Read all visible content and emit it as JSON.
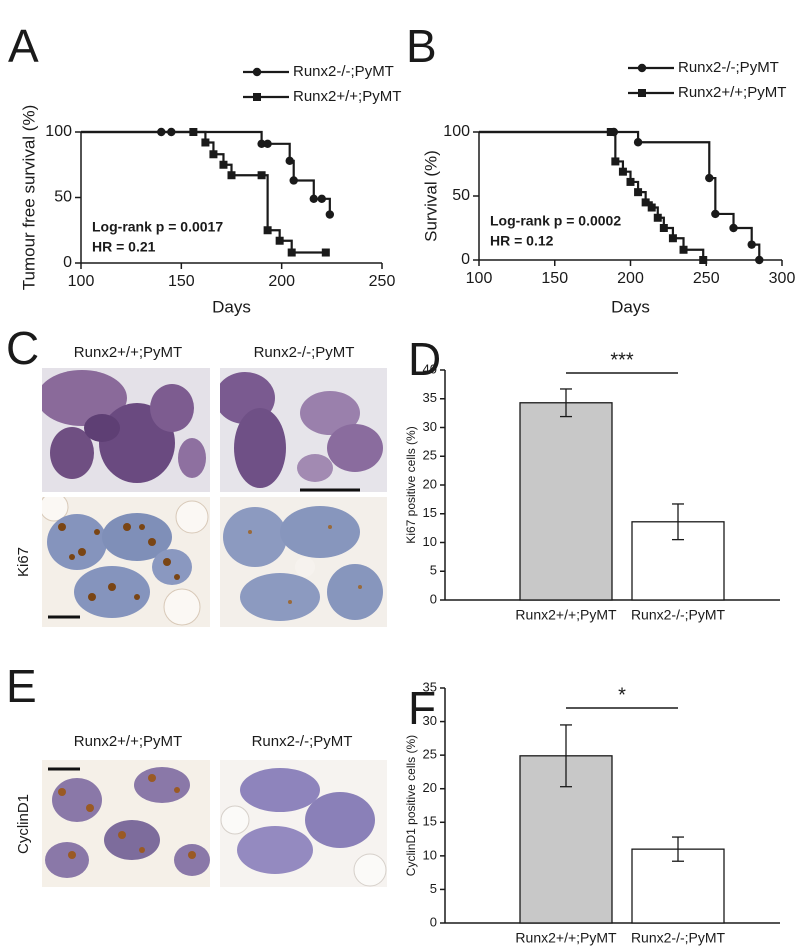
{
  "chart_data": [
    {
      "type": "step",
      "panel": "A",
      "x_label": "Days",
      "y_label": "Tumour free survival (%)",
      "xlim": [
        100,
        250
      ],
      "xticks": [
        100,
        150,
        200,
        250
      ],
      "ylim": [
        0,
        100
      ],
      "yticks": [
        0,
        50,
        100
      ],
      "annotations": [
        "Log-rank p = 0.0017",
        "HR = 0.21"
      ],
      "series": [
        {
          "name": "Runx2-/-;PyMT",
          "marker": "circle",
          "color": "#1a1a1a",
          "x": [
            140,
            145,
            190,
            193,
            204,
            206,
            216,
            220,
            224
          ],
          "values": [
            100,
            100,
            91,
            91,
            78,
            63,
            49,
            49,
            37
          ]
        },
        {
          "name": "Runx2+/+;PyMT",
          "marker": "square",
          "color": "#1a1a1a",
          "x": [
            156,
            162,
            166,
            171,
            175,
            190,
            193,
            199,
            205,
            222
          ],
          "values": [
            100,
            92,
            83,
            75,
            67,
            67,
            25,
            17,
            8,
            8
          ]
        }
      ]
    },
    {
      "type": "step",
      "panel": "B",
      "x_label": "Days",
      "y_label": "Survival (%)",
      "xlim": [
        100,
        300
      ],
      "xticks": [
        100,
        150,
        200,
        250,
        300
      ],
      "ylim": [
        0,
        100
      ],
      "yticks": [
        0,
        50,
        100
      ],
      "annotations": [
        "Log-rank p = 0.0002",
        "HR = 0.12"
      ],
      "series": [
        {
          "name": "Runx2-/-;PyMT",
          "marker": "circle",
          "color": "#1a1a1a",
          "x": [
            189,
            205,
            252,
            256,
            268,
            280,
            285
          ],
          "values": [
            100,
            92,
            64,
            36,
            25,
            12,
            0
          ]
        },
        {
          "name": "Runx2+/+;PyMT",
          "marker": "square",
          "color": "#1a1a1a",
          "x": [
            187,
            190,
            195,
            200,
            205,
            210,
            214,
            218,
            222,
            228,
            235,
            248
          ],
          "values": [
            100,
            77,
            69,
            61,
            53,
            45,
            41,
            33,
            25,
            17,
            8,
            0
          ]
        }
      ]
    },
    {
      "type": "bar",
      "panel": "D",
      "y_label": "Ki67 positive cells (%)",
      "categories": [
        "Runx2+/+;PyMT",
        "Runx2-/-;PyMT"
      ],
      "values": [
        34.3,
        13.6
      ],
      "errors": [
        2.4,
        3.1
      ],
      "colors": [
        "#c8c8c8",
        "#ffffff"
      ],
      "ylim": [
        0,
        40
      ],
      "yticks": [
        0,
        5,
        10,
        15,
        20,
        25,
        30,
        35,
        40
      ],
      "significance": "***"
    },
    {
      "type": "bar",
      "panel": "F",
      "y_label": "CyclinD1 positive cells (%)",
      "categories": [
        "Runx2+/+;PyMT",
        "Runx2-/-;PyMT"
      ],
      "values": [
        24.9,
        11.0
      ],
      "errors": [
        4.6,
        1.8
      ],
      "colors": [
        "#c8c8c8",
        "#ffffff"
      ],
      "ylim": [
        0,
        35
      ],
      "yticks": [
        0,
        5,
        10,
        15,
        20,
        25,
        30,
        35
      ],
      "significance": "*"
    }
  ],
  "image_panels": [
    {
      "panel": "C",
      "columns": [
        "Runx2+/+;PyMT",
        "Runx2-/-;PyMT"
      ],
      "row_label": "Ki67"
    },
    {
      "panel": "E",
      "columns": [
        "Runx2+/+;PyMT",
        "Runx2-/-;PyMT"
      ],
      "row_label": "CyclinD1"
    }
  ]
}
